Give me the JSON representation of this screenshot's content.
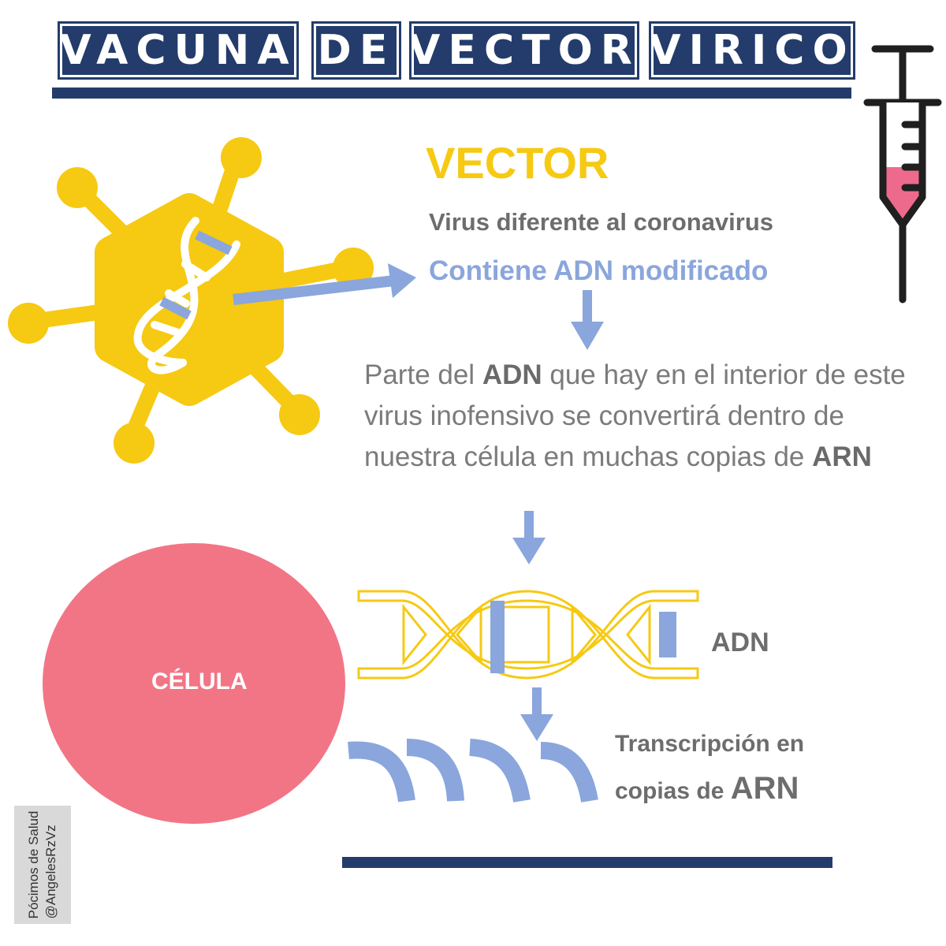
{
  "title": {
    "words": [
      "VACUNA",
      "DE",
      "VECTOR",
      "VIRICO"
    ]
  },
  "vector": {
    "heading": "VECTOR",
    "subtitle": "Virus diferente al coronavirus",
    "dna_note": "Contiene ADN modificado"
  },
  "paragraph": {
    "p1": "Parte del ",
    "b1": "ADN",
    "p2": " que hay en el interior de este virus inofensivo se convertirá dentro de nuestra célula en muchas copias de ",
    "b2": "ARN"
  },
  "cell": {
    "label": "CÉLULA"
  },
  "adn": {
    "label": "ADN"
  },
  "transcription": {
    "line1": "Transcripción en",
    "line2_prefix": "copias de ",
    "line2_big": "ARN"
  },
  "credit": {
    "line1": "Pócimos de Salud",
    "line2": "@AngelesRzVz"
  },
  "colors": {
    "navy": "#233c6b",
    "yellow": "#f6c913",
    "blue": "#8aa6dc",
    "pink": "#f27586",
    "gray": "#6d6d6d"
  }
}
